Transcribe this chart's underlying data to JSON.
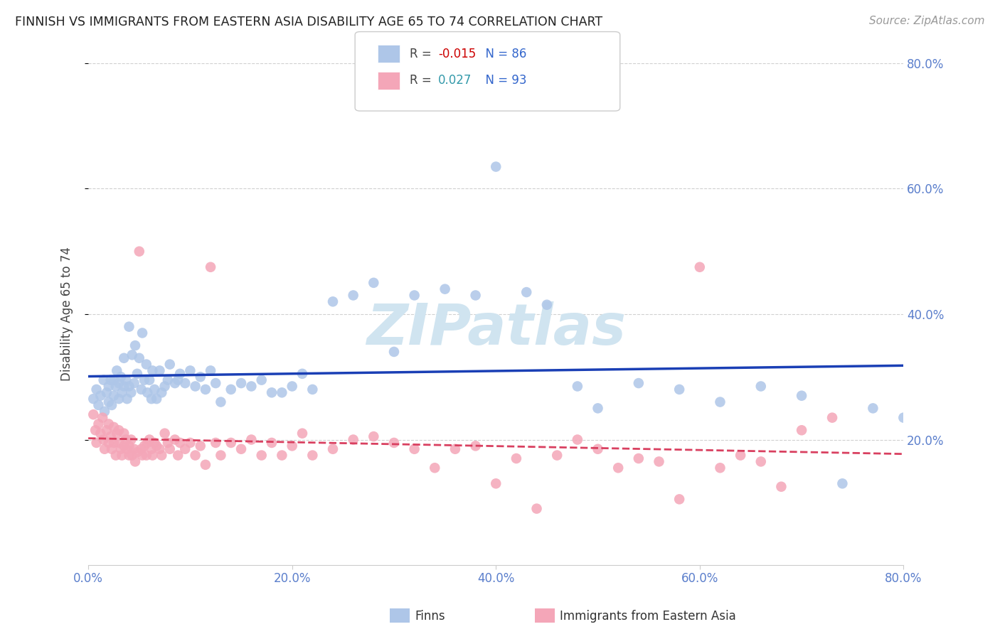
{
  "title": "FINNISH VS IMMIGRANTS FROM EASTERN ASIA DISABILITY AGE 65 TO 74 CORRELATION CHART",
  "source": "Source: ZipAtlas.com",
  "ylabel": "Disability Age 65 to 74",
  "ylim": [
    0.0,
    0.8
  ],
  "xlim": [
    0.0,
    0.8
  ],
  "ytick_values": [
    0.2,
    0.4,
    0.6,
    0.8
  ],
  "xtick_values": [
    0.0,
    0.2,
    0.4,
    0.6,
    0.8
  ],
  "finns_R": -0.015,
  "finns_N": 86,
  "immigrants_R": 0.027,
  "immigrants_N": 93,
  "finns_color": "#aec6e8",
  "immigrants_color": "#f4a6b8",
  "finns_line_color": "#1a3fb5",
  "immigrants_line_color": "#d94060",
  "background_color": "#ffffff",
  "axis_label_color": "#5b7fcc",
  "watermark_color": "#d0e4f0",
  "finns_x": [
    0.005,
    0.008,
    0.01,
    0.012,
    0.015,
    0.016,
    0.018,
    0.02,
    0.02,
    0.022,
    0.023,
    0.025,
    0.025,
    0.027,
    0.028,
    0.03,
    0.03,
    0.032,
    0.033,
    0.035,
    0.035,
    0.037,
    0.038,
    0.04,
    0.04,
    0.042,
    0.043,
    0.045,
    0.046,
    0.048,
    0.05,
    0.052,
    0.053,
    0.055,
    0.057,
    0.058,
    0.06,
    0.062,
    0.063,
    0.065,
    0.067,
    0.07,
    0.072,
    0.075,
    0.078,
    0.08,
    0.085,
    0.088,
    0.09,
    0.095,
    0.1,
    0.105,
    0.11,
    0.115,
    0.12,
    0.125,
    0.13,
    0.14,
    0.15,
    0.16,
    0.17,
    0.18,
    0.19,
    0.2,
    0.21,
    0.22,
    0.24,
    0.26,
    0.28,
    0.3,
    0.32,
    0.35,
    0.38,
    0.4,
    0.43,
    0.45,
    0.48,
    0.5,
    0.54,
    0.58,
    0.62,
    0.66,
    0.7,
    0.74,
    0.77,
    0.8
  ],
  "finns_y": [
    0.265,
    0.28,
    0.255,
    0.27,
    0.295,
    0.245,
    0.275,
    0.285,
    0.26,
    0.295,
    0.255,
    0.295,
    0.27,
    0.285,
    0.31,
    0.29,
    0.265,
    0.3,
    0.275,
    0.33,
    0.285,
    0.295,
    0.265,
    0.38,
    0.285,
    0.275,
    0.335,
    0.29,
    0.35,
    0.305,
    0.33,
    0.28,
    0.37,
    0.295,
    0.32,
    0.275,
    0.295,
    0.265,
    0.31,
    0.28,
    0.265,
    0.31,
    0.275,
    0.285,
    0.295,
    0.32,
    0.29,
    0.295,
    0.305,
    0.29,
    0.31,
    0.285,
    0.3,
    0.28,
    0.31,
    0.29,
    0.26,
    0.28,
    0.29,
    0.285,
    0.295,
    0.275,
    0.275,
    0.285,
    0.305,
    0.28,
    0.42,
    0.43,
    0.45,
    0.34,
    0.43,
    0.44,
    0.43,
    0.635,
    0.435,
    0.415,
    0.285,
    0.25,
    0.29,
    0.28,
    0.26,
    0.285,
    0.27,
    0.13,
    0.25,
    0.235
  ],
  "immigrants_x": [
    0.005,
    0.007,
    0.008,
    0.01,
    0.012,
    0.014,
    0.015,
    0.016,
    0.018,
    0.02,
    0.02,
    0.022,
    0.023,
    0.025,
    0.025,
    0.027,
    0.028,
    0.03,
    0.03,
    0.032,
    0.033,
    0.035,
    0.035,
    0.037,
    0.038,
    0.04,
    0.04,
    0.042,
    0.043,
    0.045,
    0.046,
    0.048,
    0.05,
    0.052,
    0.053,
    0.055,
    0.057,
    0.058,
    0.06,
    0.062,
    0.063,
    0.065,
    0.067,
    0.07,
    0.072,
    0.075,
    0.078,
    0.08,
    0.085,
    0.088,
    0.09,
    0.095,
    0.1,
    0.105,
    0.11,
    0.115,
    0.12,
    0.125,
    0.13,
    0.14,
    0.15,
    0.16,
    0.17,
    0.18,
    0.19,
    0.2,
    0.21,
    0.22,
    0.24,
    0.26,
    0.28,
    0.3,
    0.32,
    0.34,
    0.36,
    0.38,
    0.4,
    0.42,
    0.44,
    0.46,
    0.48,
    0.5,
    0.52,
    0.54,
    0.56,
    0.58,
    0.6,
    0.62,
    0.64,
    0.66,
    0.68,
    0.7,
    0.73
  ],
  "immigrants_y": [
    0.24,
    0.215,
    0.195,
    0.225,
    0.21,
    0.235,
    0.2,
    0.185,
    0.215,
    0.225,
    0.195,
    0.205,
    0.185,
    0.22,
    0.195,
    0.175,
    0.21,
    0.215,
    0.195,
    0.185,
    0.175,
    0.21,
    0.19,
    0.2,
    0.185,
    0.175,
    0.19,
    0.2,
    0.175,
    0.185,
    0.165,
    0.18,
    0.5,
    0.185,
    0.175,
    0.19,
    0.175,
    0.195,
    0.2,
    0.185,
    0.175,
    0.195,
    0.19,
    0.185,
    0.175,
    0.21,
    0.195,
    0.185,
    0.2,
    0.175,
    0.195,
    0.185,
    0.195,
    0.175,
    0.19,
    0.16,
    0.475,
    0.195,
    0.175,
    0.195,
    0.185,
    0.2,
    0.175,
    0.195,
    0.175,
    0.19,
    0.21,
    0.175,
    0.185,
    0.2,
    0.205,
    0.195,
    0.185,
    0.155,
    0.185,
    0.19,
    0.13,
    0.17,
    0.09,
    0.175,
    0.2,
    0.185,
    0.155,
    0.17,
    0.165,
    0.105,
    0.475,
    0.155,
    0.175,
    0.165,
    0.125,
    0.215,
    0.235
  ]
}
